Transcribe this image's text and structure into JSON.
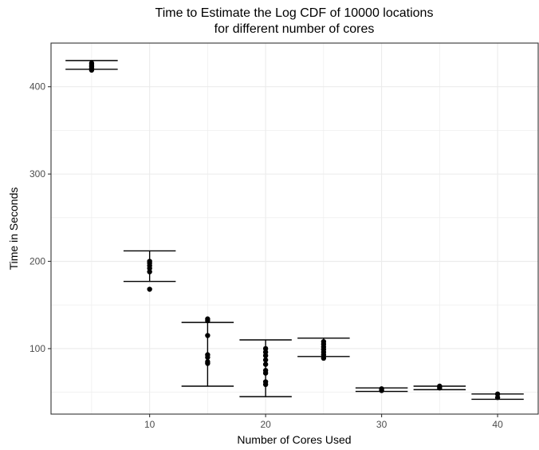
{
  "chart_data": {
    "type": "scatter",
    "title": "Time to Estimate the Log CDF of 10000 locations",
    "subtitle": "for different number of cores",
    "xlabel": "Number of Cores Used",
    "ylabel": "Time in Seconds",
    "xlim": [
      1.5,
      43.5
    ],
    "ylim": [
      25,
      450
    ],
    "x_ticks": [
      10,
      20,
      30,
      40
    ],
    "y_ticks": [
      100,
      200,
      300,
      400
    ],
    "x_minor_ticks": [
      5,
      15,
      25,
      35
    ],
    "y_minor_ticks": [
      50,
      150,
      250,
      350
    ],
    "grid": true,
    "legend": "none",
    "colors": {
      "points": "#000000",
      "grid": "#ebebeb",
      "panel_border": "#333333",
      "background": "#ffffff"
    },
    "error_bars": [
      {
        "x": 5,
        "ymin": 420,
        "ymax": 430
      },
      {
        "x": 10,
        "ymin": 177,
        "ymax": 212
      },
      {
        "x": 15,
        "ymin": 57,
        "ymax": 130
      },
      {
        "x": 20,
        "ymin": 45,
        "ymax": 110
      },
      {
        "x": 25,
        "ymin": 91,
        "ymax": 112
      },
      {
        "x": 30,
        "ymin": 51,
        "ymax": 55
      },
      {
        "x": 35,
        "ymin": 53,
        "ymax": 57
      },
      {
        "x": 40,
        "ymin": 42,
        "ymax": 48
      }
    ],
    "points": [
      {
        "x": 5,
        "y": 419
      },
      {
        "x": 5,
        "y": 421
      },
      {
        "x": 5,
        "y": 423
      },
      {
        "x": 5,
        "y": 425
      },
      {
        "x": 5,
        "y": 427
      },
      {
        "x": 10,
        "y": 168
      },
      {
        "x": 10,
        "y": 188
      },
      {
        "x": 10,
        "y": 192
      },
      {
        "x": 10,
        "y": 195
      },
      {
        "x": 10,
        "y": 198
      },
      {
        "x": 10,
        "y": 200
      },
      {
        "x": 15,
        "y": 83
      },
      {
        "x": 15,
        "y": 85
      },
      {
        "x": 15,
        "y": 90
      },
      {
        "x": 15,
        "y": 93
      },
      {
        "x": 15,
        "y": 115
      },
      {
        "x": 15,
        "y": 132
      },
      {
        "x": 15,
        "y": 134
      },
      {
        "x": 20,
        "y": 59
      },
      {
        "x": 20,
        "y": 62
      },
      {
        "x": 20,
        "y": 72
      },
      {
        "x": 20,
        "y": 75
      },
      {
        "x": 20,
        "y": 82
      },
      {
        "x": 20,
        "y": 87
      },
      {
        "x": 20,
        "y": 92
      },
      {
        "x": 20,
        "y": 96
      },
      {
        "x": 20,
        "y": 100
      },
      {
        "x": 25,
        "y": 89
      },
      {
        "x": 25,
        "y": 93
      },
      {
        "x": 25,
        "y": 96
      },
      {
        "x": 25,
        "y": 99
      },
      {
        "x": 25,
        "y": 102
      },
      {
        "x": 25,
        "y": 105
      },
      {
        "x": 25,
        "y": 108
      },
      {
        "x": 30,
        "y": 52
      },
      {
        "x": 30,
        "y": 54
      },
      {
        "x": 35,
        "y": 55
      },
      {
        "x": 35,
        "y": 57
      },
      {
        "x": 40,
        "y": 44
      },
      {
        "x": 40,
        "y": 48
      }
    ]
  }
}
